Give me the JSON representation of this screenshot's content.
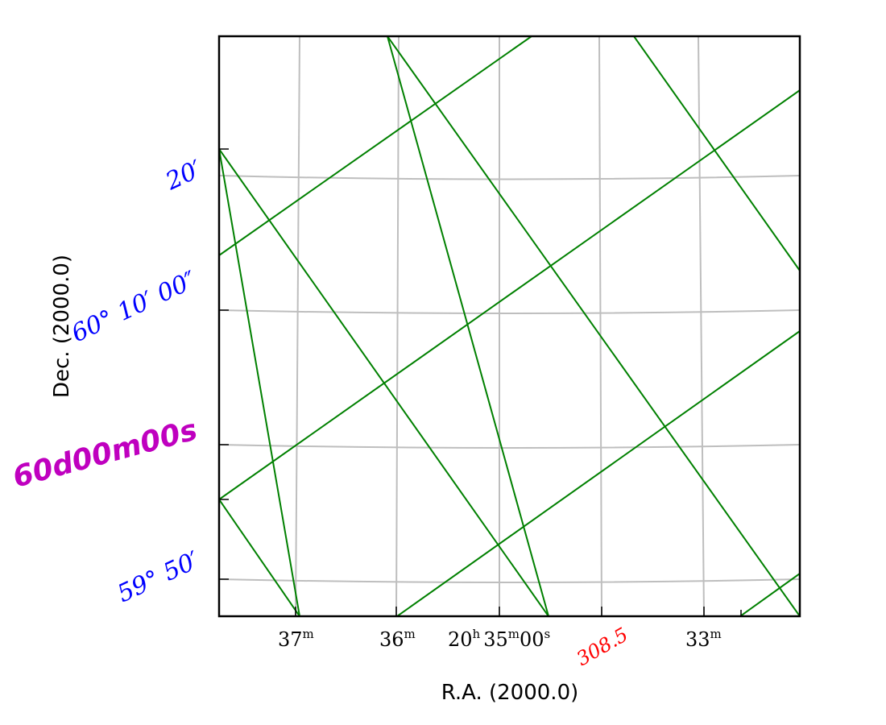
{
  "chart_data": {
    "type": "sky-coordinate-grid",
    "xlabel": "R.A. (2000.0)",
    "ylabel": "Dec. (2000.0)",
    "x_ticks": [
      {
        "value": "37",
        "sup": "m"
      },
      {
        "value": "36",
        "sup": "m"
      },
      {
        "value": "20",
        "sup": "h",
        "value2": "35",
        "sup2": "m",
        "value3": "00",
        "sup3": "s"
      },
      {
        "value": "33",
        "sup": "m"
      }
    ],
    "y_ticks": [
      {
        "text": "20′",
        "color": "#0000ff"
      },
      {
        "text": "60° 10′ 00″",
        "color": "#0000ff"
      },
      {
        "text": "59° 50′",
        "color": "#0000ff"
      }
    ],
    "annotations": [
      {
        "text": "60d00m00s",
        "color": "#bf00bf",
        "rotation_deg": -15
      },
      {
        "text": "308.5",
        "color": "#ff0000",
        "rotation_deg": -30
      }
    ],
    "grid": true,
    "grid_color": "#bebebe",
    "overlay_grid_color": "#008000"
  }
}
